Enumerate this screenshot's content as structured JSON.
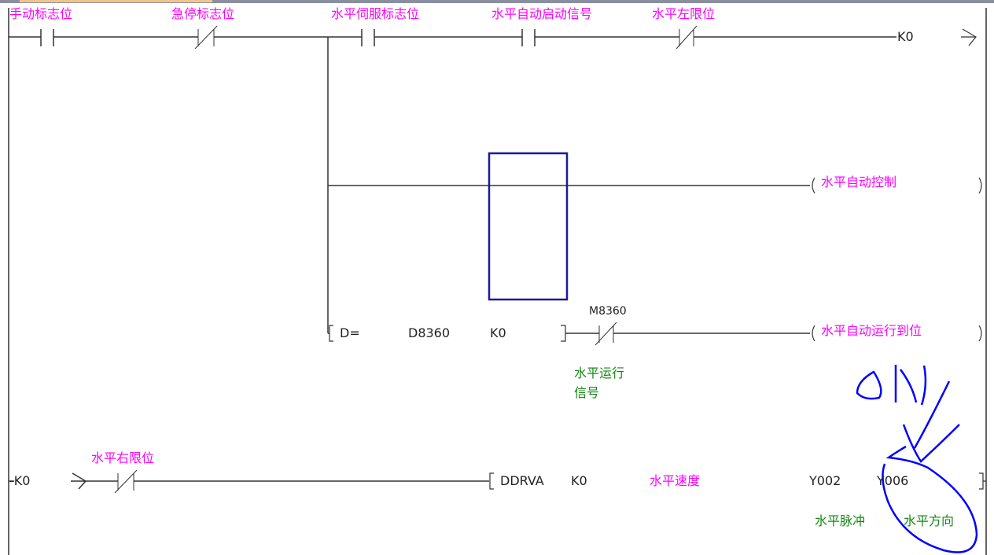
{
  "colors": {
    "comment": "#ff00ff",
    "device_comment": "#138a13",
    "annotation": "#0000ff",
    "cursor": "#1a1a9a"
  },
  "rung1": {
    "contacts": [
      {
        "label": "手动标志位",
        "type": "normally-open"
      },
      {
        "label": "急停标志位",
        "type": "normally-closed"
      },
      {
        "label": "水平伺服标志位",
        "type": "normally-open"
      },
      {
        "label": "水平自动启动信号",
        "type": "normally-open"
      },
      {
        "label": "水平左限位",
        "type": "normally-closed"
      }
    ],
    "output": "K0",
    "coil": {
      "label": "水平自动控制"
    },
    "compare": {
      "op": "D=",
      "arg1": "D8360",
      "arg2": "K0"
    },
    "contact_m8360": {
      "device": "M8360",
      "comment_line1": "水平运行",
      "comment_line2": "信号"
    },
    "coil2": {
      "label": "水平自动运行到位"
    }
  },
  "rung2": {
    "input": "-K0",
    "contact": {
      "label": "水平右限位",
      "type": "normally-closed"
    },
    "instruction": {
      "name": "DDRVA",
      "arg1": "K0",
      "arg2": "水平速度",
      "arg3": "Y002",
      "arg4": "Y006"
    },
    "comments": {
      "y002": "水平脉冲",
      "y006": "水平方向"
    }
  }
}
